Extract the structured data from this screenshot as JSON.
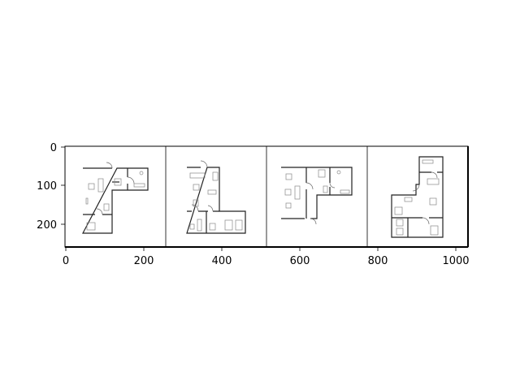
{
  "figure": {
    "x_ticks": [
      "0",
      "200",
      "400",
      "600",
      "800",
      "1000"
    ],
    "y_ticks": [
      "0",
      "100",
      "200"
    ],
    "panel_count": 4,
    "colors": {
      "wall": "#222222",
      "furniture": "#888888",
      "separator": "#000000"
    }
  }
}
